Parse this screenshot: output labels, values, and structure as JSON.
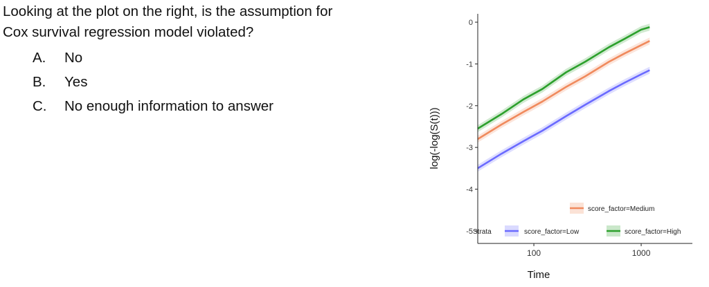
{
  "question": {
    "line1": "Looking at the plot on the right, is the assumption for",
    "line2": "Cox survival regression model violated?",
    "options": [
      {
        "letter": "A.",
        "text": "No"
      },
      {
        "letter": "B.",
        "text": "Yes"
      },
      {
        "letter": "C.",
        "text": "No enough information to answer"
      }
    ]
  },
  "chart_data": {
    "type": "line",
    "title": "",
    "xlabel": "Time",
    "ylabel": "log(-log(S(t)))",
    "x_scale": "log",
    "xlim": [
      30,
      3000
    ],
    "ylim": [
      -5.3,
      0.2
    ],
    "x_ticks": [
      100,
      1000
    ],
    "x_tick_labels": [
      "100",
      "1000"
    ],
    "y_ticks": [
      0,
      -1,
      -2,
      -3,
      -4,
      -5
    ],
    "y_tick_labels": [
      "0",
      "-1",
      "-2",
      "-3",
      "-4",
      "-5"
    ],
    "grid": false,
    "legend": {
      "title": "Strata",
      "position": "bottom-right",
      "entries": [
        "score_factor=Medium",
        "score_factor=Low",
        "score_factor=High"
      ]
    },
    "series": [
      {
        "name": "score_factor=High",
        "color": "#2ca02c",
        "x": [
          30,
          50,
          80,
          120,
          200,
          300,
          500,
          700,
          1000,
          1200
        ],
        "y": [
          -2.55,
          -2.2,
          -1.85,
          -1.6,
          -1.2,
          -0.95,
          -0.6,
          -0.4,
          -0.18,
          -0.12
        ]
      },
      {
        "name": "score_factor=Medium",
        "color": "#f08a5d",
        "x": [
          30,
          50,
          80,
          120,
          200,
          300,
          500,
          700,
          1000,
          1200
        ],
        "y": [
          -2.8,
          -2.45,
          -2.15,
          -1.9,
          -1.55,
          -1.3,
          -0.95,
          -0.75,
          -0.55,
          -0.45
        ]
      },
      {
        "name": "score_factor=Low",
        "color": "#6a6aff",
        "x": [
          30,
          50,
          80,
          120,
          200,
          300,
          500,
          700,
          1000,
          1200
        ],
        "y": [
          -3.5,
          -3.15,
          -2.85,
          -2.6,
          -2.25,
          -1.98,
          -1.65,
          -1.45,
          -1.25,
          -1.15
        ]
      }
    ]
  }
}
